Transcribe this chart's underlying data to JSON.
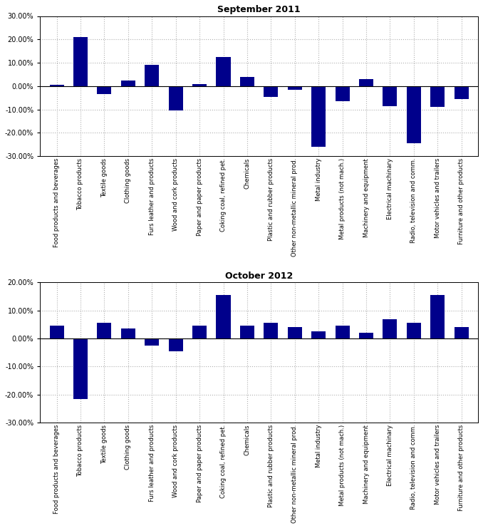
{
  "categories": [
    "Food products and beverages",
    "Tobacco products",
    "Textile goods",
    "Clothing goods",
    "Furs leather and products",
    "Wood and cork products",
    "Paper and paper products",
    "Coking coal, refined pet.",
    "Chemicals",
    "Plastic and rubber products",
    "Other non-metallic mineral prod.",
    "Metal industry",
    "Metal products (not mach.)",
    "Machinery and equipment",
    "Electrical machinary",
    "Radio, television and comm.",
    "Motor vehicles and trailers",
    "Furniture and other products"
  ],
  "sep2011": [
    0.5,
    21.0,
    -3.5,
    2.5,
    9.0,
    -10.5,
    1.0,
    12.5,
    4.0,
    -4.5,
    -1.5,
    -26.0,
    -6.5,
    3.0,
    -8.5,
    -24.5,
    -9.0,
    -5.5
  ],
  "oct2012": [
    4.5,
    -21.5,
    5.5,
    3.5,
    -2.5,
    -4.5,
    4.5,
    15.5,
    4.5,
    5.5,
    4.0,
    2.5,
    4.5,
    2.0,
    7.0,
    5.5,
    15.5,
    4.0
  ],
  "bar_color": "#00008B",
  "title1": "September 2011",
  "title2": "October 2012",
  "ylim1": [
    -30,
    30
  ],
  "ylim2": [
    -30,
    20
  ],
  "yticks1": [
    -30,
    -20,
    -10,
    0,
    10,
    20,
    30
  ],
  "yticks2": [
    -30,
    -20,
    -10,
    0,
    10,
    20
  ],
  "background_color": "#ffffff",
  "grid_color": "#b0b0b0"
}
